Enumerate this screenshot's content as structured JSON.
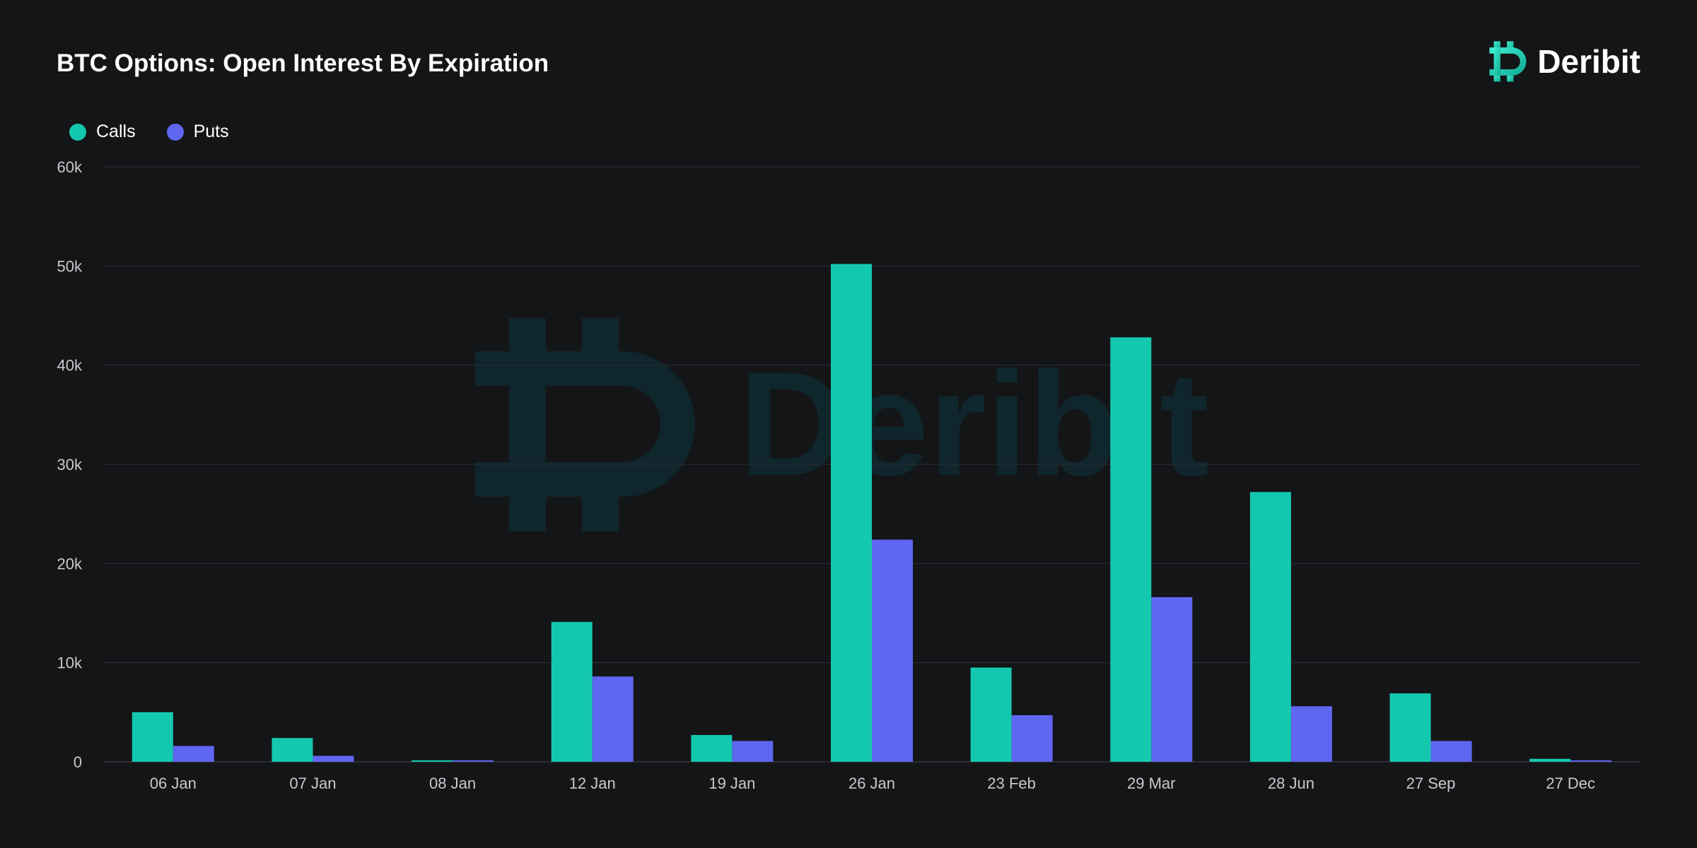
{
  "title": "BTC Options: Open Interest By Expiration",
  "brand": {
    "name": "Deribit",
    "logo_icon": "deribit-d-logo-icon",
    "watermark": "Deribit"
  },
  "colors": {
    "background": "#141517",
    "calls": "#14c8b0",
    "puts": "#5f66f0",
    "grid": "#262830",
    "watermark": "#10262d"
  },
  "chart_data": {
    "type": "bar",
    "title": "BTC Options: Open Interest By Expiration",
    "xlabel": "",
    "ylabel": "",
    "categories": [
      "06 Jan",
      "07 Jan",
      "08 Jan",
      "12 Jan",
      "19 Jan",
      "26 Jan",
      "23 Feb",
      "29 Mar",
      "28 Jun",
      "27 Sep",
      "27 Dec"
    ],
    "series": [
      {
        "name": "Calls",
        "values": [
          5000,
          2400,
          150,
          14100,
          2700,
          50200,
          9500,
          42800,
          27200,
          6900,
          300
        ]
      },
      {
        "name": "Puts",
        "values": [
          1600,
          600,
          150,
          8600,
          2100,
          22400,
          4700,
          16600,
          5600,
          2100,
          150
        ]
      }
    ],
    "ylim": [
      0,
      60000
    ],
    "yticks": [
      0,
      10000,
      20000,
      30000,
      40000,
      50000,
      60000
    ],
    "ytick_labels": [
      "0",
      "10k",
      "20k",
      "30k",
      "40k",
      "50k",
      "60k"
    ],
    "grid": true,
    "legend": "top-left"
  }
}
